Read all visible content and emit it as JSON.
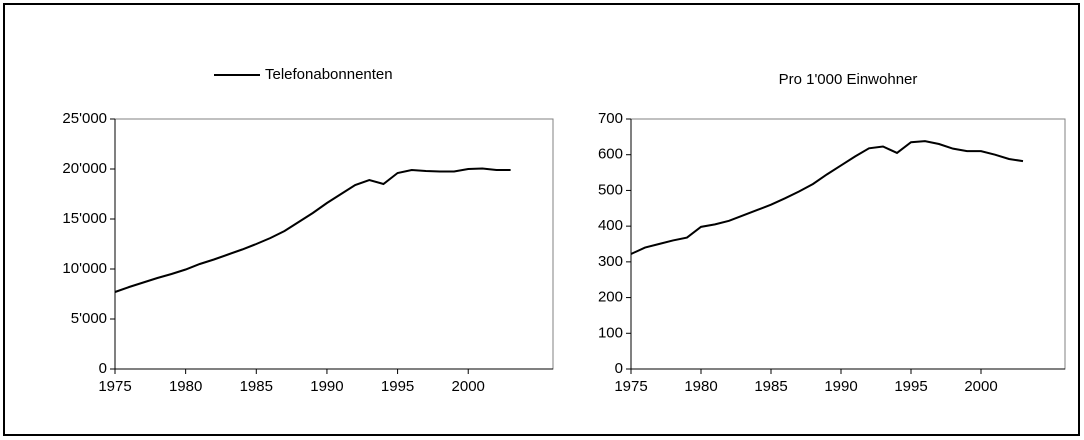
{
  "chart_data": [
    {
      "type": "line",
      "legend": "top",
      "series": [
        {
          "name": "Telefonabonnenten",
          "color": "#000000",
          "values": [
            7700,
            8200,
            8650,
            9100,
            9500,
            9950,
            10500,
            10950,
            11450,
            11950,
            12500,
            13100,
            13800,
            14700,
            15600,
            16600,
            17500,
            18400,
            18900,
            18500,
            19600,
            19900,
            19800,
            19750,
            19750,
            20000,
            20050,
            19900,
            19900
          ]
        }
      ],
      "x": [
        1975,
        1976,
        1977,
        1978,
        1979,
        1980,
        1981,
        1982,
        1983,
        1984,
        1985,
        1986,
        1987,
        1988,
        1989,
        1990,
        1991,
        1992,
        1993,
        1994,
        1995,
        1996,
        1997,
        1998,
        1999,
        2000,
        2001,
        2002,
        2003
      ],
      "xlim": [
        1975,
        2006
      ],
      "xticks": [
        1975,
        1980,
        1985,
        1990,
        1995,
        2000
      ],
      "ylim": [
        0,
        25000
      ],
      "yticks": [
        0,
        {
          "value": 5000,
          "label": "5'000"
        },
        {
          "value": 10000,
          "label": "10'000"
        },
        {
          "value": 15000,
          "label": "15'000"
        },
        {
          "value": 20000,
          "label": "20'000"
        },
        {
          "value": 25000,
          "label": "25'000"
        }
      ]
    },
    {
      "type": "line",
      "title": "Pro 1'000 Einwohner",
      "series": [
        {
          "color": "#000000",
          "values": [
            322,
            340,
            350,
            360,
            368,
            398,
            405,
            415,
            430,
            445,
            460,
            478,
            497,
            518,
            545,
            570,
            595,
            618,
            623,
            605,
            635,
            638,
            630,
            617,
            610,
            610,
            600,
            588,
            582
          ]
        }
      ],
      "x": [
        1975,
        1976,
        1977,
        1978,
        1979,
        1980,
        1981,
        1982,
        1983,
        1984,
        1985,
        1986,
        1987,
        1988,
        1989,
        1990,
        1991,
        1992,
        1993,
        1994,
        1995,
        1996,
        1997,
        1998,
        1999,
        2000,
        2001,
        2002,
        2003
      ],
      "xlim": [
        1975,
        2006
      ],
      "xticks": [
        1975,
        1980,
        1985,
        1990,
        1995,
        2000
      ],
      "ylim": [
        0,
        700
      ],
      "yticks": [
        0,
        100,
        200,
        300,
        400,
        500,
        600,
        700
      ]
    }
  ]
}
